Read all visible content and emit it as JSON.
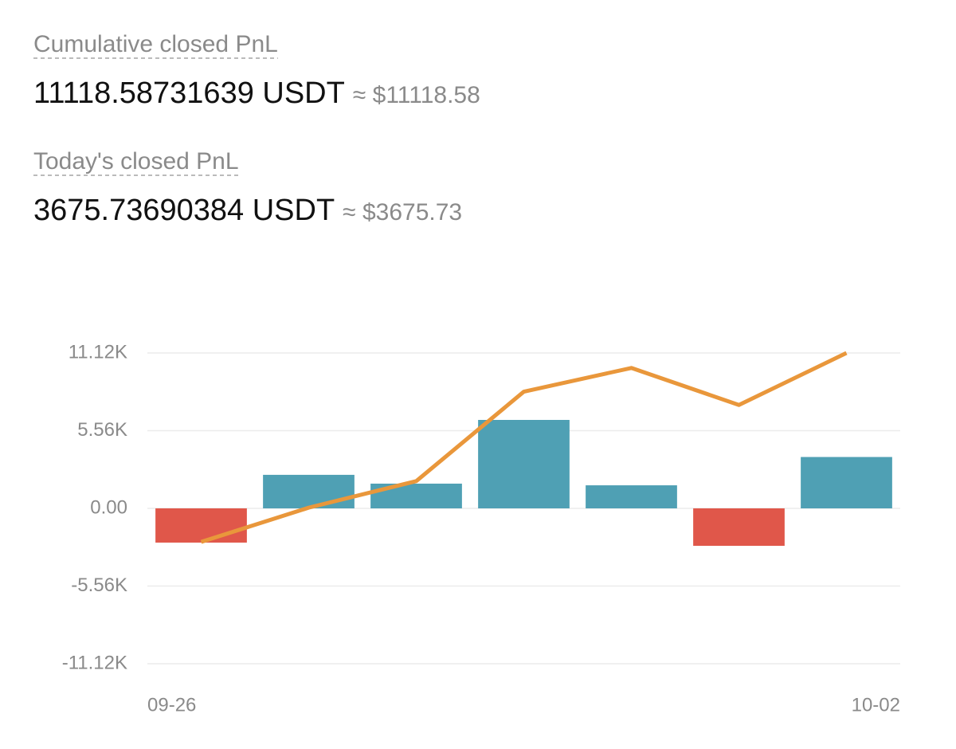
{
  "header": {
    "cumulative": {
      "label": "Cumulative closed PnL",
      "value": "11118.58731639 USDT",
      "approx": "≈ $11118.58"
    },
    "today": {
      "label": "Today's closed PnL",
      "value": "3675.73690384 USDT",
      "approx": "≈ $3675.73"
    }
  },
  "chart_data": {
    "type": "combo",
    "categories": [
      "09-26",
      null,
      null,
      null,
      null,
      null,
      "10-02"
    ],
    "series": [
      {
        "type": "bar",
        "color": "#4fa0b4",
        "negative_color": "#e0574a",
        "values": [
          -2450,
          2400,
          1770,
          6330,
          1650,
          -2680,
          3675.74
        ]
      },
      {
        "type": "line",
        "color": "#e9973b",
        "values": [
          -2400,
          50,
          1950,
          8350,
          10050,
          7400,
          11118.59
        ]
      }
    ],
    "ylim": [
      -11120,
      11120
    ],
    "yticks": [
      {
        "value": -11120,
        "label": "-11.12K"
      },
      {
        "value": -5560,
        "label": "-5.56K"
      },
      {
        "value": 0,
        "label": "0.00"
      },
      {
        "value": 5560,
        "label": "5.56K"
      },
      {
        "value": 11120,
        "label": "11.12K"
      }
    ],
    "grid": true
  }
}
